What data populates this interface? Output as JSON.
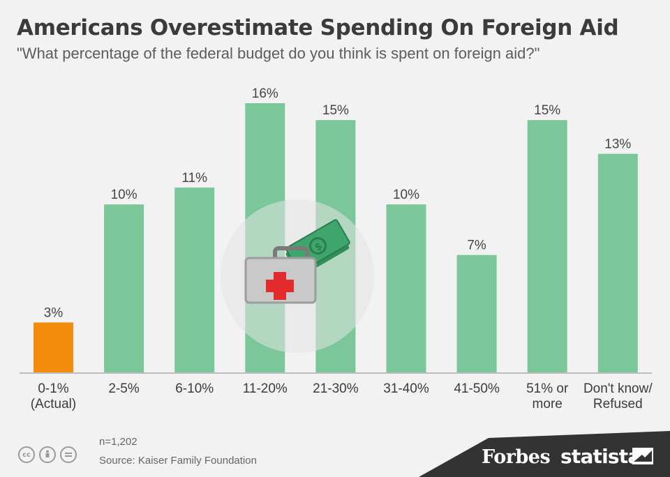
{
  "header": {
    "title": "Americans Overestimate Spending On Foreign Aid",
    "subtitle": "\"What percentage of the federal budget do you think is spent on foreign aid?\""
  },
  "chart_data": {
    "type": "bar",
    "title": "Americans Overestimate Spending On Foreign Aid",
    "subtitle": "\"What percentage of the federal budget do you think is spent on foreign aid?\"",
    "categories": [
      [
        "0-1%",
        "(Actual)"
      ],
      [
        "2-5%"
      ],
      [
        "6-10%"
      ],
      [
        "11-20%"
      ],
      [
        "21-30%"
      ],
      [
        "31-40%"
      ],
      [
        "41-50%"
      ],
      [
        "51% or",
        "more"
      ],
      [
        "Don't know/",
        "Refused"
      ]
    ],
    "values": [
      3,
      10,
      11,
      16,
      15,
      10,
      7,
      15,
      13
    ],
    "value_labels": [
      "3%",
      "10%",
      "11%",
      "16%",
      "15%",
      "10%",
      "7%",
      "15%",
      "13%"
    ],
    "highlight_index": 0,
    "colors": {
      "bar": "#7bc79a",
      "highlight": "#f28c0f",
      "axis": "#bdbdbd"
    },
    "ylim": [
      0,
      16
    ],
    "grid": false,
    "legend": "none",
    "xlabel": "",
    "ylabel": ""
  },
  "illustration": {
    "icons": [
      "first-aid-kit-icon",
      "money-bills-icon"
    ],
    "colors": {
      "circle": "#e4e4e4",
      "kit": "#c9c9c9",
      "cross": "#e32b2b",
      "money": "#3fa66b"
    }
  },
  "footer": {
    "sample": "n=1,202",
    "source": "Source: Kaiser Family Foundation",
    "license_icons": [
      "cc-icon",
      "by-icon",
      "nd-icon"
    ],
    "brand_forbes": "Forbes",
    "brand_statista": "statista"
  }
}
